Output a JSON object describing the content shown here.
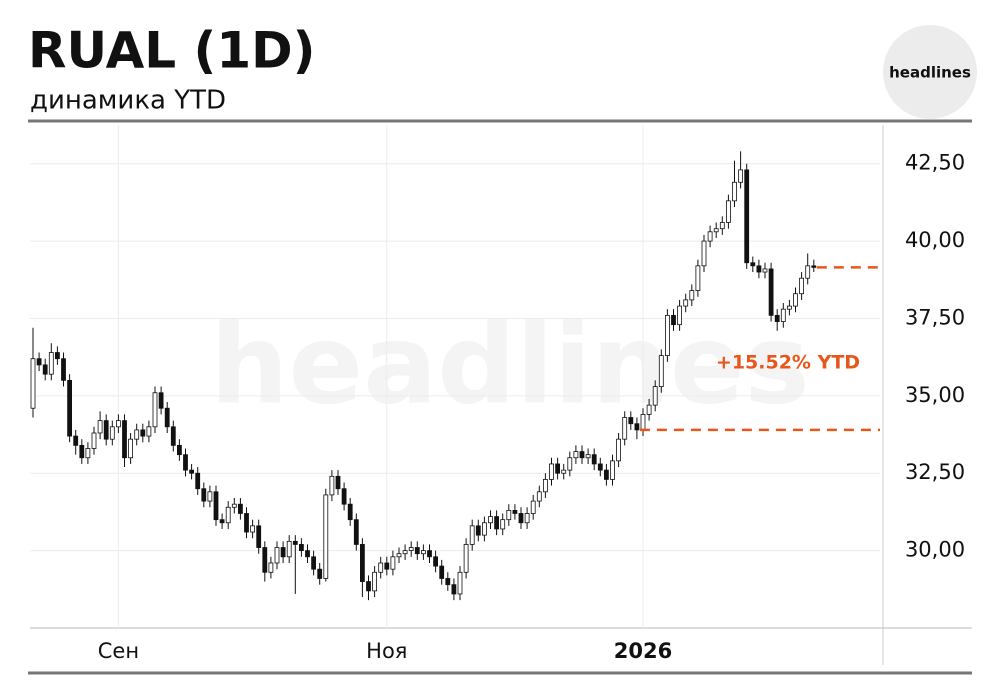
{
  "logo": "headlines",
  "watermark": "headlines",
  "chart_data": {
    "type": "candlestick",
    "title": "RUAL (1D)",
    "subtitle": "динамика YTD",
    "annotation": "+15.52% YTD",
    "annotation_color": "#e8561c",
    "reference_lines": [
      33.9,
      39.15
    ],
    "up_color": "#ffffff",
    "down_color": "#111111",
    "grid": true,
    "ylim": [
      27.5,
      43.75
    ],
    "yticks": [
      {
        "value": 30,
        "label": "30,00"
      },
      {
        "value": 32.5,
        "label": "32,50"
      },
      {
        "value": 35,
        "label": "35,00"
      },
      {
        "value": 37.5,
        "label": "37,50"
      },
      {
        "value": 40,
        "label": "40,00"
      },
      {
        "value": 42.5,
        "label": "42,50"
      }
    ],
    "categories": [
      null,
      null,
      null,
      null,
      null,
      null,
      null,
      null,
      null,
      null,
      null,
      null,
      null,
      null,
      "Сен",
      null,
      null,
      null,
      null,
      null,
      null,
      null,
      null,
      null,
      null,
      null,
      null,
      null,
      null,
      null,
      null,
      null,
      null,
      null,
      null,
      null,
      null,
      null,
      null,
      null,
      null,
      null,
      null,
      null,
      null,
      null,
      null,
      null,
      null,
      null,
      null,
      null,
      null,
      null,
      null,
      null,
      null,
      null,
      "Ноя",
      null,
      null,
      null,
      null,
      null,
      null,
      null,
      null,
      null,
      null,
      null,
      null,
      null,
      null,
      null,
      null,
      null,
      null,
      null,
      null,
      null,
      null,
      null,
      null,
      null,
      null,
      null,
      null,
      null,
      null,
      null,
      null,
      null,
      null,
      null,
      null,
      null,
      null,
      null,
      null,
      null,
      "2026",
      null,
      null,
      null,
      null,
      null,
      null,
      null,
      null,
      null,
      null,
      null,
      null,
      null,
      null,
      null,
      null,
      null,
      null,
      null,
      null,
      null,
      null,
      null,
      null,
      null,
      null,
      null,
      null
    ],
    "open": [
      34.6,
      36.2,
      36.0,
      35.7,
      36.4,
      36.2,
      35.5,
      33.7,
      33.4,
      33.0,
      33.3,
      33.8,
      34.2,
      33.6,
      34.0,
      34.2,
      33.0,
      33.6,
      33.9,
      33.7,
      34.0,
      35.1,
      34.6,
      34.0,
      33.4,
      33.1,
      32.6,
      32.5,
      32.0,
      31.6,
      31.9,
      31.0,
      30.9,
      31.4,
      31.5,
      31.2,
      30.6,
      30.8,
      30.1,
      29.3,
      29.6,
      30.1,
      29.8,
      30.3,
      30.2,
      30.0,
      29.8,
      29.4,
      29.1,
      31.8,
      32.4,
      32.0,
      31.5,
      31.0,
      30.2,
      29.0,
      28.7,
      29.3,
      29.6,
      29.4,
      29.8,
      29.9,
      30.0,
      30.1,
      29.9,
      30.0,
      29.8,
      29.5,
      29.1,
      28.9,
      28.6,
      29.3,
      30.2,
      30.8,
      30.5,
      30.9,
      31.1,
      30.7,
      31.0,
      31.3,
      31.2,
      30.9,
      31.2,
      31.6,
      31.9,
      32.3,
      32.8,
      32.5,
      32.6,
      33.0,
      33.2,
      33.0,
      33.1,
      32.8,
      32.6,
      32.3,
      32.9,
      33.6,
      34.3,
      34.1,
      33.9,
      34.4,
      34.7,
      35.3,
      36.3,
      37.6,
      37.3,
      37.9,
      38.1,
      38.4,
      39.2,
      40.0,
      40.3,
      40.4,
      40.6,
      41.3,
      41.9,
      42.3,
      39.3,
      39.2,
      39.0,
      39.1,
      37.6,
      37.4,
      37.8,
      37.9,
      38.3,
      38.8,
      39.2
    ],
    "high": [
      37.2,
      36.4,
      36.2,
      36.7,
      36.6,
      36.4,
      35.7,
      33.9,
      33.6,
      33.5,
      34.0,
      34.5,
      34.4,
      34.2,
      34.4,
      34.4,
      33.8,
      34.1,
      34.1,
      34.2,
      35.3,
      35.3,
      34.8,
      34.2,
      33.6,
      33.3,
      32.8,
      32.7,
      32.2,
      32.1,
      32.1,
      31.2,
      31.6,
      31.7,
      31.7,
      31.4,
      31.0,
      31.0,
      30.3,
      29.8,
      30.3,
      30.3,
      30.5,
      30.5,
      30.4,
      30.2,
      30.0,
      29.6,
      32.0,
      32.6,
      32.6,
      32.2,
      31.7,
      31.2,
      30.4,
      29.2,
      29.5,
      29.8,
      29.8,
      30.0,
      30.1,
      30.2,
      30.3,
      30.3,
      30.2,
      30.2,
      30.0,
      29.7,
      29.3,
      29.1,
      29.5,
      30.4,
      31.0,
      31.0,
      31.1,
      31.3,
      31.3,
      31.2,
      31.5,
      31.5,
      31.4,
      31.4,
      31.8,
      32.1,
      32.5,
      33.0,
      33.0,
      32.8,
      33.2,
      33.4,
      33.4,
      33.3,
      33.3,
      33.0,
      32.8,
      33.1,
      33.8,
      34.5,
      34.5,
      34.3,
      34.6,
      34.9,
      35.5,
      36.5,
      37.8,
      37.8,
      38.1,
      38.3,
      38.6,
      39.4,
      40.2,
      40.5,
      40.6,
      40.8,
      41.5,
      42.6,
      42.9,
      42.5,
      39.5,
      39.4,
      39.3,
      39.3,
      37.8,
      38.0,
      38.1,
      38.5,
      39.0,
      39.6,
      39.4
    ],
    "low": [
      34.3,
      35.8,
      35.5,
      35.5,
      36.0,
      35.3,
      33.5,
      33.1,
      32.8,
      32.8,
      33.1,
      33.6,
      33.4,
      33.4,
      33.8,
      32.7,
      32.8,
      33.4,
      33.5,
      33.5,
      33.8,
      34.4,
      33.8,
      33.2,
      32.9,
      32.4,
      32.3,
      31.8,
      31.4,
      31.4,
      30.8,
      30.7,
      30.7,
      31.2,
      31.0,
      30.4,
      30.4,
      29.9,
      29.0,
      29.1,
      29.4,
      29.6,
      29.6,
      28.6,
      29.8,
      29.6,
      29.2,
      28.9,
      29.0,
      31.6,
      31.8,
      31.3,
      30.8,
      30.0,
      28.5,
      28.4,
      28.5,
      29.1,
      29.2,
      29.2,
      29.6,
      29.7,
      29.8,
      29.7,
      29.7,
      29.6,
      29.3,
      28.9,
      28.7,
      28.4,
      28.4,
      29.1,
      30.0,
      30.3,
      30.3,
      30.7,
      30.5,
      30.5,
      30.8,
      31.0,
      30.7,
      30.7,
      31.0,
      31.4,
      31.7,
      32.1,
      32.3,
      32.3,
      32.4,
      32.8,
      32.8,
      32.8,
      32.6,
      32.4,
      32.1,
      32.1,
      32.7,
      33.4,
      33.9,
      33.6,
      33.7,
      34.2,
      34.5,
      35.1,
      36.1,
      37.1,
      37.1,
      37.7,
      37.9,
      38.2,
      39.0,
      39.8,
      40.1,
      40.2,
      40.4,
      41.1,
      41.7,
      39.1,
      39.0,
      38.8,
      38.8,
      37.4,
      37.1,
      37.2,
      37.6,
      37.7,
      38.1,
      38.6,
      39.0
    ],
    "close": [
      36.2,
      36.0,
      35.7,
      36.4,
      36.2,
      35.5,
      33.7,
      33.4,
      33.0,
      33.3,
      33.8,
      34.2,
      33.6,
      34.0,
      34.2,
      33.0,
      33.6,
      33.9,
      33.7,
      34.0,
      35.1,
      34.6,
      34.0,
      33.4,
      33.1,
      32.6,
      32.5,
      32.0,
      31.6,
      31.9,
      31.0,
      30.9,
      31.4,
      31.5,
      31.2,
      30.6,
      30.8,
      30.1,
      29.3,
      29.6,
      30.1,
      29.8,
      30.3,
      30.2,
      30.0,
      29.8,
      29.4,
      29.1,
      31.8,
      32.4,
      32.0,
      31.5,
      31.0,
      30.2,
      29.0,
      28.7,
      29.3,
      29.6,
      29.4,
      29.8,
      29.9,
      30.0,
      30.1,
      29.9,
      30.0,
      29.8,
      29.5,
      29.1,
      28.9,
      28.6,
      29.3,
      30.2,
      30.8,
      30.5,
      30.9,
      31.1,
      30.7,
      31.0,
      31.3,
      31.2,
      30.9,
      31.2,
      31.6,
      31.9,
      32.3,
      32.8,
      32.5,
      32.6,
      33.0,
      33.2,
      33.0,
      33.1,
      32.8,
      32.6,
      32.3,
      32.9,
      33.6,
      34.3,
      34.1,
      33.9,
      34.4,
      34.7,
      35.3,
      36.3,
      37.6,
      37.3,
      37.9,
      38.1,
      38.4,
      39.2,
      40.0,
      40.3,
      40.4,
      40.6,
      41.3,
      41.9,
      42.3,
      39.3,
      39.2,
      39.0,
      39.1,
      37.6,
      37.4,
      37.8,
      37.9,
      38.3,
      38.8,
      39.2,
      39.15
    ]
  }
}
